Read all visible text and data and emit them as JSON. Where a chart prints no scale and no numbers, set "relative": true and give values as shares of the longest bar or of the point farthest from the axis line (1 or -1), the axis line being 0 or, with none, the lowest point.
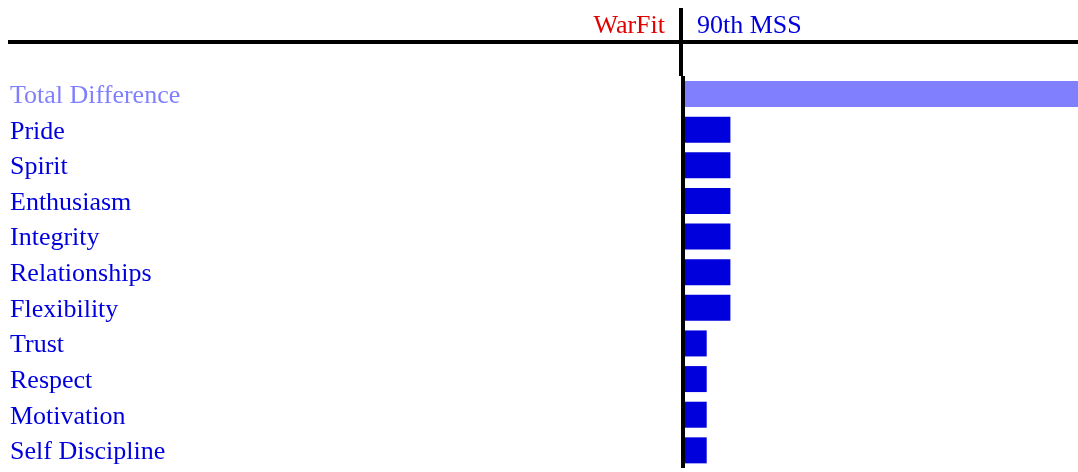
{
  "chart_data": {
    "type": "bar",
    "orientation": "horizontal",
    "relative": true,
    "categories": [
      "Total Difference",
      "Pride",
      "Spirit",
      "Enthusiasm",
      "Integrity",
      "Relationships",
      "Flexibility",
      "Trust",
      "Respect",
      "Motivation",
      "Self Discipline"
    ],
    "values": [
      1,
      0.12,
      0.12,
      0.12,
      0.12,
      0.12,
      0.12,
      0.06,
      0.06,
      0.06,
      0.06
    ],
    "colors": [
      "#8080ff",
      "#0000dd",
      "#0000dd",
      "#0000dd",
      "#0000dd",
      "#0000dd",
      "#0000dd",
      "#0000dd",
      "#0000dd",
      "#0000dd",
      "#0000dd"
    ],
    "annotations": [
      "WarFit",
      "90th MSS"
    ]
  }
}
